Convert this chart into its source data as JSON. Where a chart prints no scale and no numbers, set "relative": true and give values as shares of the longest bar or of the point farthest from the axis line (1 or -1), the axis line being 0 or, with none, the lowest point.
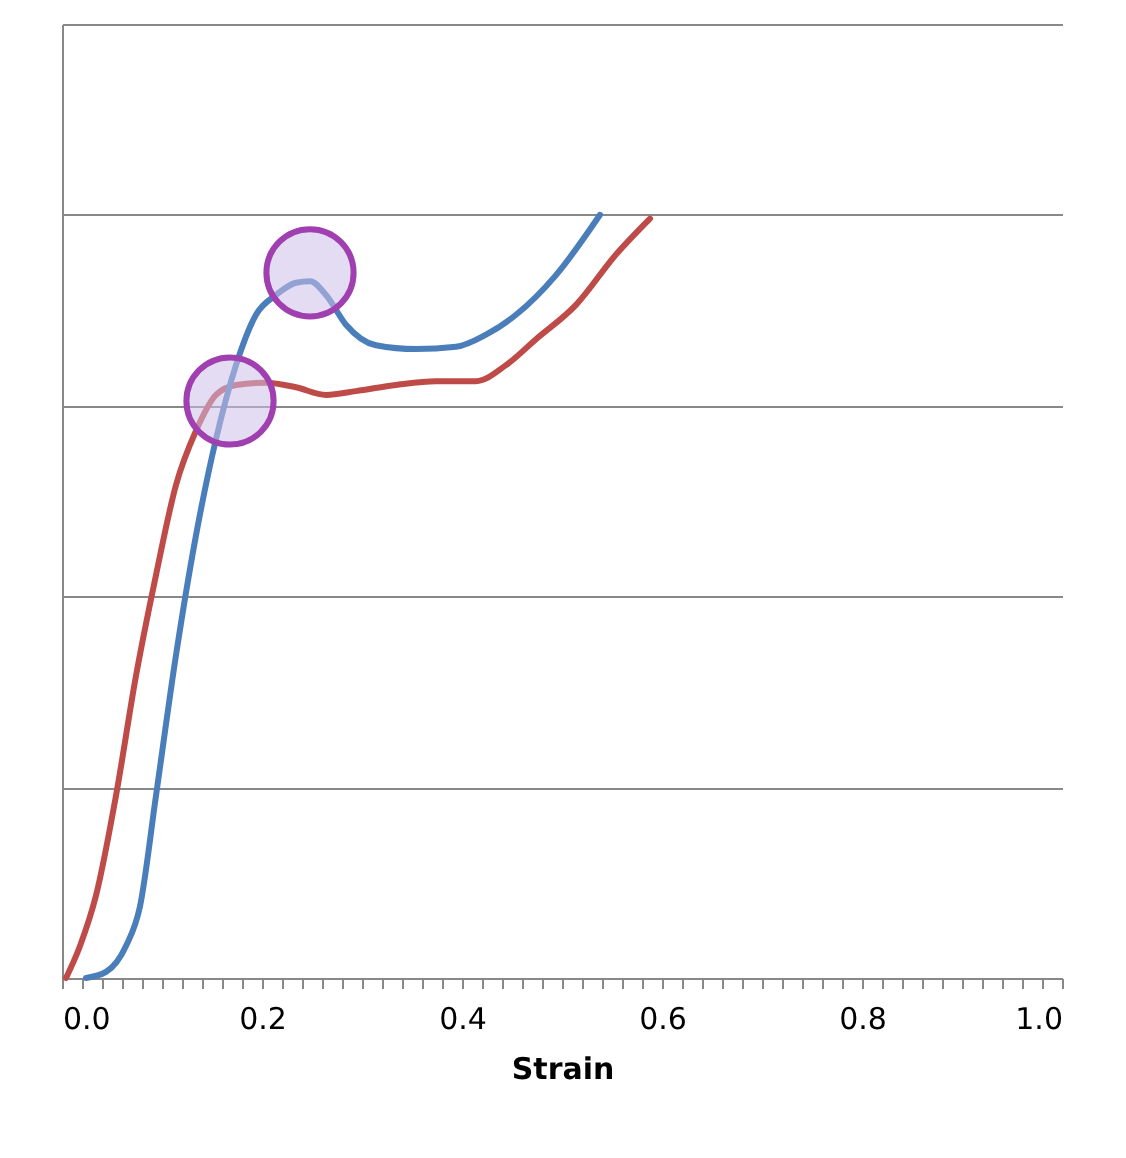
{
  "chart_data": {
    "type": "line",
    "relative": true,
    "xlabel": "Strain",
    "grid": "y",
    "legend": false,
    "line_style": "solid",
    "marker": "none",
    "xlim": [
      0,
      1
    ],
    "xticks": [
      {
        "value": 0,
        "label": "0.0"
      },
      {
        "value": 0.02,
        "label": null
      },
      {
        "value": 0.04,
        "label": null
      },
      {
        "value": 0.06,
        "label": null
      },
      {
        "value": 0.08,
        "label": null
      },
      {
        "value": 0.1,
        "label": null
      },
      {
        "value": 0.12,
        "label": null
      },
      {
        "value": 0.14,
        "label": null
      },
      {
        "value": 0.16,
        "label": null
      },
      {
        "value": 0.18,
        "label": null
      },
      {
        "value": 0.2,
        "label": "0.2"
      },
      {
        "value": 0.22,
        "label": null
      },
      {
        "value": 0.24,
        "label": null
      },
      {
        "value": 0.26,
        "label": null
      },
      {
        "value": 0.28,
        "label": null
      },
      {
        "value": 0.3,
        "label": null
      },
      {
        "value": 0.32,
        "label": null
      },
      {
        "value": 0.34,
        "label": null
      },
      {
        "value": 0.36,
        "label": null
      },
      {
        "value": 0.38,
        "label": null
      },
      {
        "value": 0.4,
        "label": "0.4"
      },
      {
        "value": 0.42,
        "label": null
      },
      {
        "value": 0.44,
        "label": null
      },
      {
        "value": 0.46,
        "label": null
      },
      {
        "value": 0.48,
        "label": null
      },
      {
        "value": 0.5,
        "label": null
      },
      {
        "value": 0.52,
        "label": null
      },
      {
        "value": 0.54,
        "label": null
      },
      {
        "value": 0.56,
        "label": null
      },
      {
        "value": 0.58,
        "label": null
      },
      {
        "value": 0.6,
        "label": "0.6"
      },
      {
        "value": 0.62,
        "label": null
      },
      {
        "value": 0.64,
        "label": null
      },
      {
        "value": 0.66,
        "label": null
      },
      {
        "value": 0.68,
        "label": null
      },
      {
        "value": 0.7,
        "label": null
      },
      {
        "value": 0.72,
        "label": null
      },
      {
        "value": 0.74,
        "label": null
      },
      {
        "value": 0.76,
        "label": null
      },
      {
        "value": 0.78,
        "label": null
      },
      {
        "value": 0.8,
        "label": "0.8"
      },
      {
        "value": 0.82,
        "label": null
      },
      {
        "value": 0.84,
        "label": null
      },
      {
        "value": 0.86,
        "label": null
      },
      {
        "value": 0.88,
        "label": null
      },
      {
        "value": 0.9,
        "label": null
      },
      {
        "value": 0.92,
        "label": null
      },
      {
        "value": 0.94,
        "label": null
      },
      {
        "value": 0.96,
        "label": null
      },
      {
        "value": 0.98,
        "label": null
      },
      {
        "value": 1,
        "label": "1.0"
      }
    ],
    "series": [
      {
        "color": "#be4b48",
        "x": [
          0.004,
          0.018,
          0.034,
          0.054,
          0.074,
          0.094,
          0.114,
          0.134,
          0.154,
          0.174,
          0.204,
          0.234,
          0.264,
          0.294,
          0.334,
          0.374,
          0.414,
          0.444,
          0.474,
          0.514,
          0.554,
          0.588
        ],
        "values": [
          0,
          0.042,
          0.108,
          0.239,
          0.396,
          0.528,
          0.646,
          0.717,
          0.764,
          0.777,
          0.78,
          0.774,
          0.764,
          0.769,
          0.777,
          0.782,
          0.782,
          0.803,
          0.837,
          0.882,
          0.948,
          0.995
        ]
      },
      {
        "color": "#4a7ebb",
        "x": [
          0.024,
          0.044,
          0.064,
          0.078,
          0.094,
          0.114,
          0.134,
          0.154,
          0.174,
          0.194,
          0.214,
          0.234,
          0.248,
          0.264,
          0.284,
          0.314,
          0.354,
          0.394,
          0.424,
          0.454,
          0.494,
          0.538
        ],
        "values": [
          0,
          0.008,
          0.042,
          0.094,
          0.239,
          0.423,
          0.58,
          0.706,
          0.803,
          0.869,
          0.895,
          0.911,
          0.913,
          0.895,
          0.856,
          0.829,
          0.824,
          0.827,
          0.843,
          0.869,
          0.921,
          1.0
        ]
      },
      {
        "type": "scatter",
        "marker": "circle",
        "color": "#a040b0",
        "x": [
          0.168,
          0.248
        ],
        "values": [
          0.756,
          0.924
        ]
      }
    ]
  }
}
